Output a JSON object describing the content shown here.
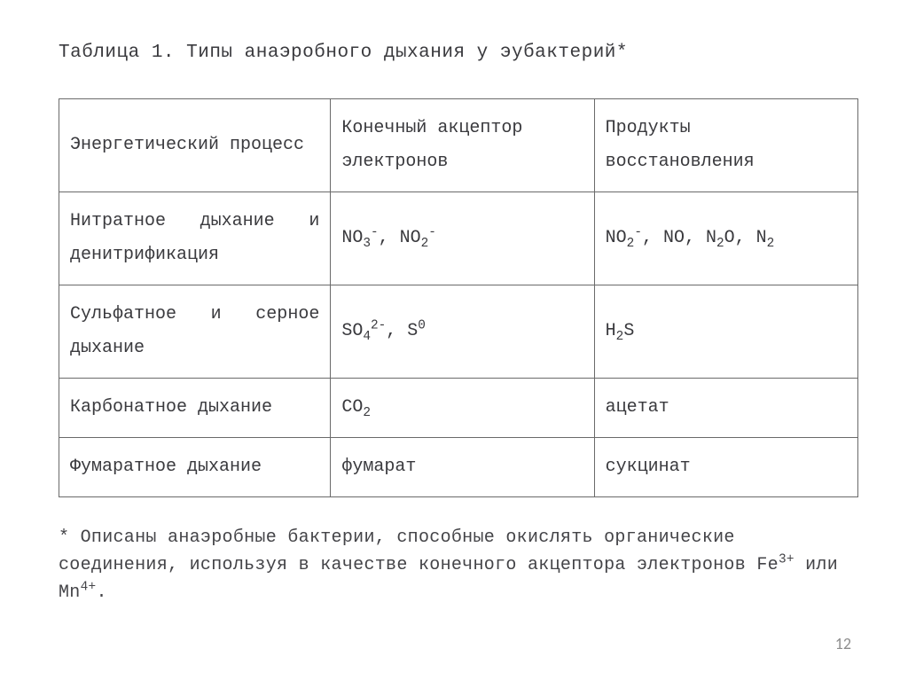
{
  "title": "Таблица 1. Типы анаэробного дыхания у эубактерий*",
  "table": {
    "border_color": "#6a6a6a",
    "text_color": "#3a3a3e",
    "font_family": "Courier New",
    "cell_fontsize": 20,
    "title_fontsize": 21,
    "col_widths_pct": [
      34,
      33,
      33
    ],
    "columns": [
      "Энергетический процесс",
      "Конечный акцептор электронов",
      "Продукты восстановления"
    ],
    "rows": [
      {
        "process": "Нитратное дыхание и денитрификация",
        "acceptor_html": "NO<sub>3</sub><sup>-</sup>, NO<sub>2</sub><sup>-</sup>",
        "products_html": "NO<sub>2</sub><sup>-</sup>, NO, N<sub>2</sub>O, N<sub>2</sub>"
      },
      {
        "process": "Сульфатное и серное дыхание",
        "acceptor_html": "SO<sub>4</sub><sup>2-</sup>, S<sup>0</sup>",
        "products_html": "H<sub>2</sub>S"
      },
      {
        "process": "Карбонатное дыхание",
        "acceptor_html": "CO<sub>2</sub>",
        "products_html": "ацетат"
      },
      {
        "process": "Фумаратное дыхание",
        "acceptor_html": "фумарат",
        "products_html": "сукцинат"
      }
    ],
    "justify_rows": [
      0,
      1
    ]
  },
  "footnote_html": "* Описаны анаэробные бактерии, способные окислять органические соединения, используя в качестве конечного акцептора электронов Fe<sup>3+</sup> или Mn<sup>4+</sup>.",
  "page_number": "12",
  "background_color": "#ffffff"
}
